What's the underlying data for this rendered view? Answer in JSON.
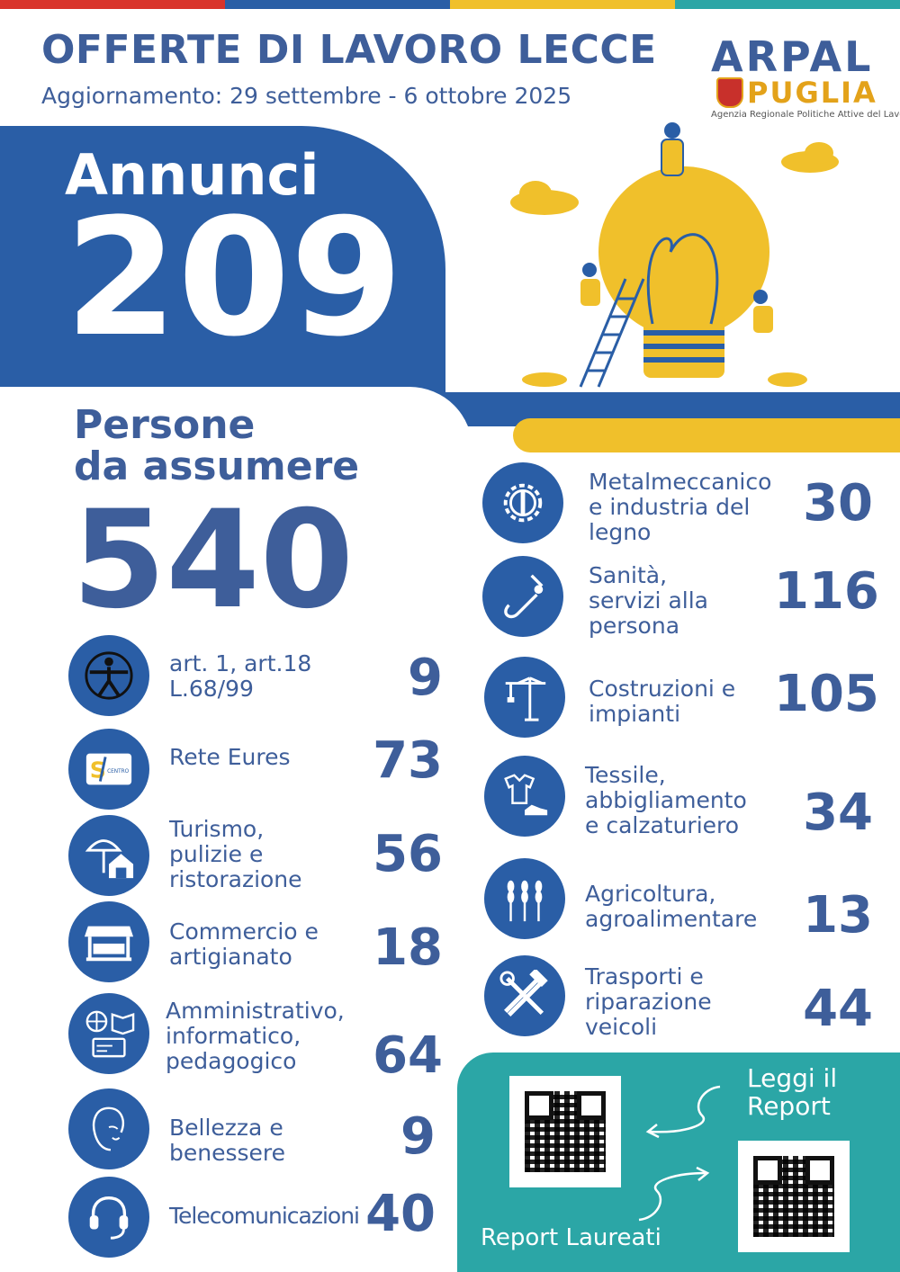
{
  "header": {
    "title": "OFFERTE DI LAVORO LECCE",
    "subtitle": "Aggiornamento: 29 settembre - 6 ottobre 2025",
    "top_colors": [
      "#d9342b",
      "#2a5ea6",
      "#f0c02b",
      "#2ba6a6"
    ]
  },
  "logo": {
    "arpal": "ARPAL",
    "puglia": "PUGLIA",
    "tagline": "Agenzia Regionale Politiche Attive del Lavoro"
  },
  "annunci": {
    "label": "Annunci",
    "value": "209"
  },
  "persone": {
    "label": "Persone\nda assumere",
    "value": "540"
  },
  "left_categories": [
    {
      "label": "art. 1, art.18\nL.68/99",
      "value": "9",
      "icon": "accessibility-icon"
    },
    {
      "label": "Rete Eures",
      "value": "73",
      "icon": "eures-logo-icon"
    },
    {
      "label": "Turismo,\npulizie e\nristorazione",
      "value": "56",
      "icon": "umbrella-house-icon"
    },
    {
      "label": "Commercio e\nartigianato",
      "value": "18",
      "icon": "market-stall-icon"
    },
    {
      "label": "Amministrativo,\ninformatico,\npedagogico",
      "value": "64",
      "icon": "globe-book-icon"
    },
    {
      "label": "Bellezza e\nbenessere",
      "value": "9",
      "icon": "woman-face-icon"
    },
    {
      "label": "Telecomunicazioni",
      "value": "40",
      "icon": "headset-icon"
    }
  ],
  "right_categories": [
    {
      "label": "Metalmeccanico\ne industria del\nlegno",
      "value": "30",
      "icon": "gear-wrench-icon"
    },
    {
      "label": "Sanità,\nservizi alla\npersona",
      "value": "116",
      "icon": "stethoscope-icon"
    },
    {
      "label": "Costruzioni e\nimpianti",
      "value": "105",
      "icon": "crane-icon"
    },
    {
      "label": "Tessile,\nabbigliamento\ne calzaturiero",
      "value": "34",
      "icon": "shirt-shoe-icon"
    },
    {
      "label": "Agricoltura,\nagroalimentare",
      "value": "13",
      "icon": "wheat-icon"
    },
    {
      "label": "Trasporti e\nriparazione\nveicoli",
      "value": "44",
      "icon": "hammer-wrench-icon"
    }
  ],
  "reports": {
    "leggi": "Leggi il\nReport",
    "laureati": "Report Laureati"
  }
}
